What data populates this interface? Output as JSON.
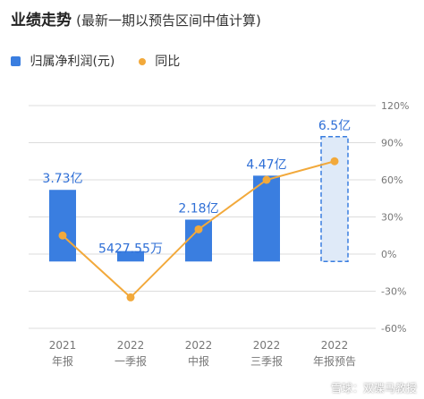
{
  "title": {
    "main": "业绩走势",
    "sub": "(最新一期以预告区间中值计算)"
  },
  "watermark": "雪球：双碟马教授",
  "colors": {
    "bar": "#3a7ee0",
    "forecast_fill": "#dfeaf8",
    "forecast_border": "#3a7ee0",
    "line": "#f2a93b",
    "grid": "#dcdcdc",
    "label_blue": "#2f6fd6",
    "axis_text": "#777777"
  },
  "chart_data": {
    "type": "bar",
    "categories": [
      [
        "2021",
        "年报"
      ],
      [
        "2022",
        "一季报"
      ],
      [
        "2022",
        "中报"
      ],
      [
        "2022",
        "三季报"
      ],
      [
        "2022",
        "年报预告"
      ]
    ],
    "series": [
      {
        "name": "归属净利润(元)",
        "type": "bar",
        "axis": "left",
        "values": [
          3.73,
          0.542755,
          2.18,
          4.47,
          6.5
        ],
        "labels": [
          "3.73亿",
          "5427.55万",
          "2.18亿",
          "4.47亿",
          "6.5亿"
        ],
        "forecast": [
          false,
          false,
          false,
          false,
          true
        ]
      },
      {
        "name": "同比",
        "type": "line",
        "axis": "right",
        "values": [
          15,
          -35,
          20,
          60,
          75
        ]
      }
    ],
    "y_left_range": [
      -3.48,
      8.12
    ],
    "y_right": {
      "range": [
        -60,
        120
      ],
      "ticks": [
        120,
        90,
        60,
        30,
        0,
        -30,
        -60
      ],
      "tick_labels": [
        "120%",
        "90%",
        "60%",
        "30%",
        "0%",
        "-30%",
        "-60%"
      ]
    },
    "grid": true,
    "legend_position": "top-left"
  }
}
